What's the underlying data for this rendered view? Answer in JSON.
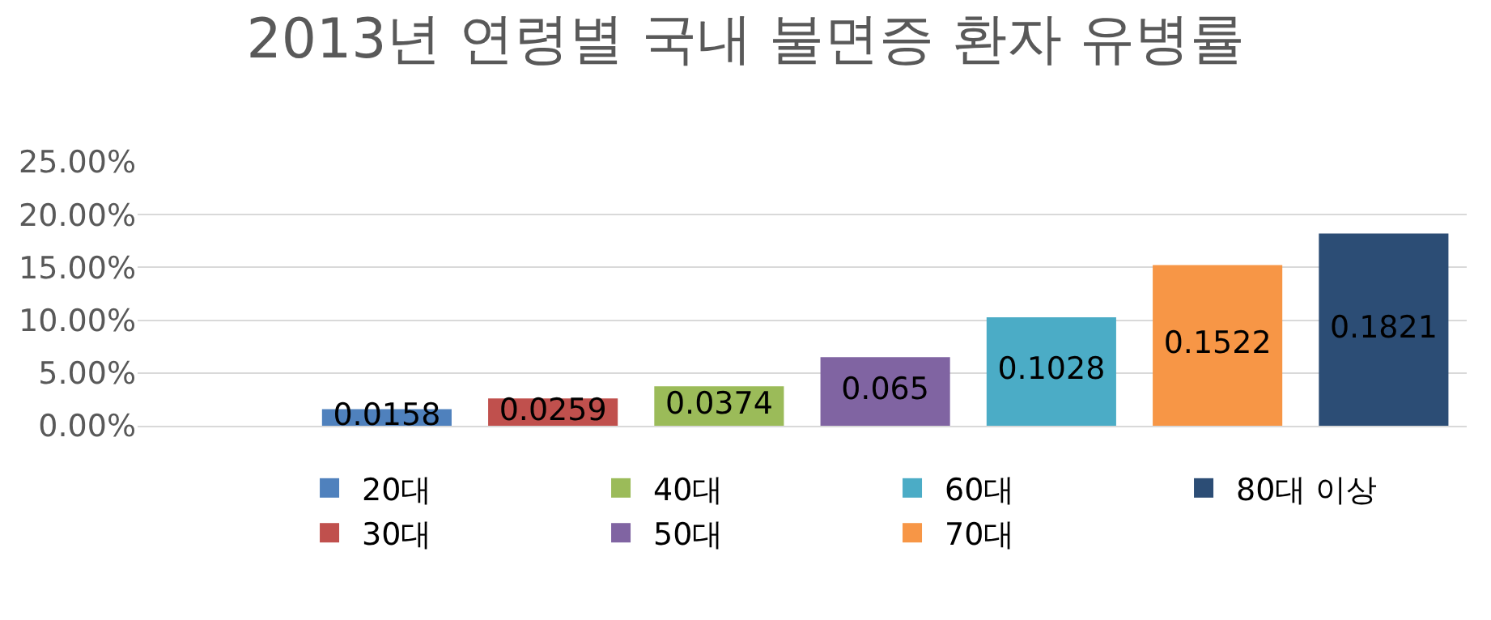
{
  "chart_data": {
    "type": "bar",
    "title": "2013년 연령별 국내 불면증 환자 유병률",
    "categories": [
      null,
      null,
      null,
      null,
      null,
      null,
      null,
      null
    ],
    "series": [
      {
        "name": "20대",
        "color": "#4f81bd",
        "values": [
          null,
          0.0158,
          null,
          null,
          null,
          null,
          null,
          null
        ]
      },
      {
        "name": "30대",
        "color": "#c0504d",
        "values": [
          null,
          null,
          0.0259,
          null,
          null,
          null,
          null,
          null
        ]
      },
      {
        "name": "40대",
        "color": "#9bbb59",
        "values": [
          null,
          null,
          null,
          0.0374,
          null,
          null,
          null,
          null
        ]
      },
      {
        "name": "50대",
        "color": "#8064a2",
        "values": [
          null,
          null,
          null,
          null,
          0.065,
          null,
          null,
          null
        ]
      },
      {
        "name": "60대",
        "color": "#4bacc6",
        "values": [
          null,
          null,
          null,
          null,
          null,
          0.1028,
          null,
          null
        ]
      },
      {
        "name": "70대",
        "color": "#f79646",
        "values": [
          null,
          null,
          null,
          null,
          null,
          null,
          0.1522,
          null
        ]
      },
      {
        "name": "80대 이상",
        "color": "#2c4d75",
        "values": [
          null,
          null,
          null,
          null,
          null,
          null,
          null,
          0.1821
        ]
      }
    ],
    "data_labels": true,
    "ylim": [
      0,
      0.25
    ],
    "yticks": [
      {
        "value": 0,
        "label": "0.00%"
      },
      {
        "value": 0.05,
        "label": "5.00%"
      },
      {
        "value": 0.1,
        "label": "10.00%"
      },
      {
        "value": 0.15,
        "label": "15.00%"
      },
      {
        "value": 0.2,
        "label": "20.00%"
      },
      {
        "value": 0.25,
        "label": "25.00%"
      }
    ],
    "grid": "y",
    "legend": "bottom"
  }
}
